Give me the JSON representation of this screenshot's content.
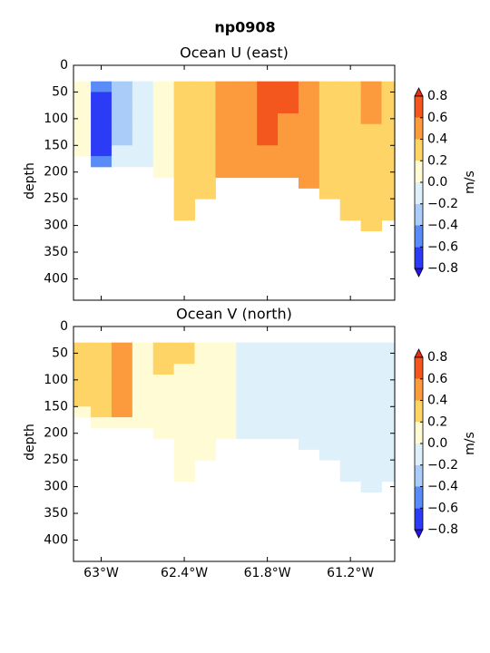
{
  "title": "np0908",
  "chart_data": [
    {
      "type": "contourf",
      "title": "Ocean U (east)",
      "ylabel": "depth",
      "x": [
        -63.15,
        -63.0,
        -62.85,
        -62.7,
        -62.55,
        -62.4,
        -62.25,
        -62.1,
        -61.95,
        -61.8,
        -61.65,
        -61.5,
        -61.35,
        -61.2,
        -61.05,
        -60.9
      ],
      "y": [
        40,
        60,
        80,
        100,
        120,
        140,
        160,
        180,
        200,
        220,
        240,
        260,
        280,
        300
      ],
      "values": [
        [
          0.1,
          -0.5,
          -0.3,
          -0.1,
          0.1,
          0.3,
          0.3,
          0.5,
          0.5,
          0.7,
          0.7,
          0.5,
          0.3,
          0.3,
          0.5,
          0.3
        ],
        [
          0.1,
          -0.7,
          -0.3,
          -0.1,
          0.1,
          0.3,
          0.3,
          0.5,
          0.5,
          0.7,
          0.7,
          0.5,
          0.3,
          0.3,
          0.5,
          0.3
        ],
        [
          0.1,
          -0.7,
          -0.3,
          -0.1,
          0.1,
          0.3,
          0.3,
          0.5,
          0.5,
          0.7,
          0.7,
          0.5,
          0.3,
          0.3,
          0.5,
          0.3
        ],
        [
          0.1,
          -0.7,
          -0.3,
          -0.1,
          0.1,
          0.3,
          0.3,
          0.5,
          0.5,
          0.7,
          0.5,
          0.5,
          0.3,
          0.3,
          0.5,
          0.3
        ],
        [
          0.1,
          -0.7,
          -0.3,
          -0.1,
          0.1,
          0.3,
          0.3,
          0.5,
          0.5,
          0.7,
          0.5,
          0.5,
          0.3,
          0.3,
          0.3,
          0.3
        ],
        [
          0.1,
          -0.7,
          -0.3,
          -0.1,
          0.1,
          0.3,
          0.3,
          0.5,
          0.5,
          0.7,
          0.5,
          0.5,
          0.3,
          0.3,
          0.3,
          0.3
        ],
        [
          0.1,
          -0.7,
          -0.1,
          -0.1,
          0.1,
          0.3,
          0.3,
          0.5,
          0.5,
          0.5,
          0.5,
          0.5,
          0.3,
          0.3,
          0.3,
          0.3
        ],
        [
          null,
          -0.5,
          -0.1,
          -0.1,
          0.1,
          0.3,
          0.3,
          0.5,
          0.5,
          0.5,
          0.5,
          0.5,
          0.3,
          0.3,
          0.3,
          0.3
        ],
        [
          null,
          null,
          null,
          null,
          0.1,
          0.3,
          0.3,
          0.5,
          0.5,
          0.5,
          0.5,
          0.5,
          0.3,
          0.3,
          0.3,
          0.3
        ],
        [
          null,
          null,
          null,
          null,
          null,
          0.3,
          0.3,
          null,
          null,
          null,
          null,
          0.5,
          0.3,
          0.3,
          0.3,
          0.3
        ],
        [
          null,
          null,
          null,
          null,
          null,
          0.3,
          0.3,
          null,
          null,
          null,
          null,
          null,
          0.3,
          0.3,
          0.3,
          0.3
        ],
        [
          null,
          null,
          null,
          null,
          null,
          0.3,
          null,
          null,
          null,
          null,
          null,
          null,
          null,
          0.3,
          0.3,
          0.3
        ],
        [
          null,
          null,
          null,
          null,
          null,
          0.3,
          null,
          null,
          null,
          null,
          null,
          null,
          null,
          0.3,
          0.3,
          0.3
        ],
        [
          null,
          null,
          null,
          null,
          null,
          null,
          null,
          null,
          null,
          null,
          null,
          null,
          null,
          null,
          0.3,
          null
        ]
      ],
      "xlim": [
        -63.2,
        -60.88
      ],
      "xticks": [
        -63,
        -62.4,
        -61.8,
        -61.2
      ],
      "ylim": [
        0,
        440
      ],
      "y_inverted": true,
      "yticks": [
        0,
        50,
        100,
        150,
        200,
        250,
        300,
        350,
        400
      ],
      "colorbar": {
        "label": "m/s",
        "levels": [
          -0.8,
          -0.6,
          -0.4,
          -0.2,
          0,
          0.2,
          0.4,
          0.6,
          0.8
        ],
        "colors": [
          "#2b3bf6",
          "#5a8cf8",
          "#a9cdf8",
          "#def1fb",
          "#fffbd5",
          "#ffd466",
          "#fb9b3d",
          "#f4571e"
        ],
        "under_color": "#2a10f0",
        "over_color": "#e0301a",
        "ticks": [
          {
            "value": -0.8,
            "label": "−0.8"
          },
          {
            "value": -0.6,
            "label": "−0.6"
          },
          {
            "value": -0.4,
            "label": "−0.4"
          },
          {
            "value": -0.2,
            "label": "−0.2"
          },
          {
            "value": 0,
            "label": "0.0"
          },
          0.2,
          0.4,
          0.6,
          0.8
        ]
      }
    },
    {
      "type": "contourf",
      "title": "Ocean V (north)",
      "ylabel": "depth",
      "x": [
        -63.15,
        -63.0,
        -62.85,
        -62.7,
        -62.55,
        -62.4,
        -62.25,
        -62.1,
        -61.95,
        -61.8,
        -61.65,
        -61.5,
        -61.35,
        -61.2,
        -61.05,
        -60.9
      ],
      "y": [
        40,
        60,
        80,
        100,
        120,
        140,
        160,
        180,
        200,
        220,
        240,
        260,
        280,
        300
      ],
      "values": [
        [
          0.3,
          0.3,
          0.5,
          0.1,
          0.3,
          0.3,
          0.1,
          0.1,
          -0.1,
          -0.1,
          -0.1,
          -0.1,
          -0.1,
          -0.1,
          -0.1,
          -0.1
        ],
        [
          0.3,
          0.3,
          0.5,
          0.1,
          0.3,
          0.3,
          0.1,
          0.1,
          -0.1,
          -0.1,
          -0.1,
          -0.1,
          -0.1,
          -0.1,
          -0.1,
          -0.1
        ],
        [
          0.3,
          0.3,
          0.5,
          0.1,
          0.3,
          0.1,
          0.1,
          0.1,
          -0.1,
          -0.1,
          -0.1,
          -0.1,
          -0.1,
          -0.1,
          -0.1,
          -0.1
        ],
        [
          0.3,
          0.3,
          0.5,
          0.1,
          0.1,
          0.1,
          0.1,
          0.1,
          -0.1,
          -0.1,
          -0.1,
          -0.1,
          -0.1,
          -0.1,
          -0.1,
          -0.1
        ],
        [
          0.3,
          0.3,
          0.5,
          0.1,
          0.1,
          0.1,
          0.1,
          0.1,
          -0.1,
          -0.1,
          -0.1,
          -0.1,
          -0.1,
          -0.1,
          -0.1,
          -0.1
        ],
        [
          0.3,
          0.3,
          0.5,
          0.1,
          0.1,
          0.1,
          0.1,
          0.1,
          -0.1,
          -0.1,
          -0.1,
          -0.1,
          -0.1,
          -0.1,
          -0.1,
          -0.1
        ],
        [
          0.1,
          0.3,
          0.5,
          0.1,
          0.1,
          0.1,
          0.1,
          0.1,
          -0.1,
          -0.1,
          -0.1,
          -0.1,
          -0.1,
          -0.1,
          -0.1,
          -0.1
        ],
        [
          null,
          0.1,
          0.1,
          0.1,
          0.1,
          0.1,
          0.1,
          0.1,
          -0.1,
          -0.1,
          -0.1,
          -0.1,
          -0.1,
          -0.1,
          -0.1,
          -0.1
        ],
        [
          null,
          null,
          null,
          null,
          0.1,
          0.1,
          0.1,
          0.1,
          -0.1,
          -0.1,
          -0.1,
          -0.1,
          -0.1,
          -0.1,
          -0.1,
          -0.1
        ],
        [
          null,
          null,
          null,
          null,
          null,
          0.1,
          0.1,
          null,
          null,
          null,
          null,
          -0.1,
          -0.1,
          -0.1,
          -0.1,
          -0.1
        ],
        [
          null,
          null,
          null,
          null,
          null,
          0.1,
          0.1,
          null,
          null,
          null,
          null,
          null,
          -0.1,
          -0.1,
          -0.1,
          -0.1
        ],
        [
          null,
          null,
          null,
          null,
          null,
          0.1,
          null,
          null,
          null,
          null,
          null,
          null,
          null,
          -0.1,
          -0.1,
          -0.1
        ],
        [
          null,
          null,
          null,
          null,
          null,
          0.1,
          null,
          null,
          null,
          null,
          null,
          null,
          null,
          -0.1,
          -0.1,
          -0.1
        ],
        [
          null,
          null,
          null,
          null,
          null,
          null,
          null,
          null,
          null,
          null,
          null,
          null,
          null,
          null,
          -0.1,
          null
        ]
      ],
      "xlim": [
        -63.2,
        -60.88
      ],
      "xticks": [
        {
          "value": -63,
          "label": "63°W"
        },
        {
          "value": -62.4,
          "label": "62.4°W"
        },
        {
          "value": -61.8,
          "label": "61.8°W"
        },
        {
          "value": -61.2,
          "label": "61.2°W"
        }
      ],
      "ylim": [
        0,
        440
      ],
      "y_inverted": true,
      "yticks": [
        0,
        50,
        100,
        150,
        200,
        250,
        300,
        350,
        400
      ],
      "colorbar": {
        "label": "m/s",
        "levels": [
          -0.8,
          -0.6,
          -0.4,
          -0.2,
          0,
          0.2,
          0.4,
          0.6,
          0.8
        ],
        "colors": [
          "#2b3bf6",
          "#5a8cf8",
          "#a9cdf8",
          "#def1fb",
          "#fffbd5",
          "#ffd466",
          "#fb9b3d",
          "#f4571e"
        ],
        "under_color": "#2a10f0",
        "over_color": "#e0301a",
        "ticks": [
          {
            "value": -0.8,
            "label": "−0.8"
          },
          {
            "value": -0.6,
            "label": "−0.6"
          },
          {
            "value": -0.4,
            "label": "−0.4"
          },
          {
            "value": -0.2,
            "label": "−0.2"
          },
          {
            "value": 0,
            "label": "0.0"
          },
          0.2,
          0.4,
          0.6,
          0.8
        ]
      }
    }
  ]
}
